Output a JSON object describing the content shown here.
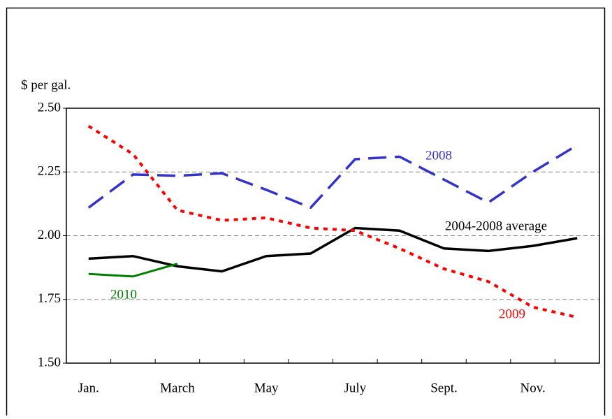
{
  "chart_data": {
    "type": "line",
    "y_label": "$ per gal.",
    "categories": [
      "Jan.",
      null,
      "March",
      null,
      "May",
      null,
      "July",
      null,
      "Sept.",
      null,
      "Nov.",
      null
    ],
    "series": [
      {
        "name": "2004-2008 average",
        "color": "#000000",
        "values": [
          1.91,
          1.92,
          1.88,
          1.86,
          1.92,
          1.93,
          2.03,
          2.02,
          1.95,
          1.94,
          1.96,
          1.99
        ]
      },
      {
        "name": "2008",
        "color": "#3333cc",
        "values": [
          2.11,
          2.24,
          2.235,
          2.245,
          2.18,
          2.11,
          2.3,
          2.31,
          2.22,
          2.13,
          2.25,
          2.355
        ]
      },
      {
        "name": "2009",
        "color": "#ff0000",
        "values": [
          2.43,
          2.32,
          2.1,
          2.06,
          2.07,
          2.03,
          2.02,
          1.95,
          1.87,
          1.82,
          1.72,
          1.68
        ]
      },
      {
        "name": "2010",
        "color": "#008000",
        "values": [
          1.85,
          1.84,
          1.89,
          null,
          null,
          null,
          null,
          null,
          null,
          null,
          null,
          null
        ]
      }
    ],
    "ylim": [
      1.5,
      2.5
    ],
    "yticks": [
      {
        "value": 1.5,
        "label": "1.50"
      },
      {
        "value": 1.75,
        "label": "1.75"
      },
      {
        "value": 2.0,
        "label": "2.00"
      },
      {
        "value": 2.25,
        "label": "2.25"
      },
      {
        "value": 2.5,
        "label": "2.50"
      }
    ],
    "grid": true
  }
}
